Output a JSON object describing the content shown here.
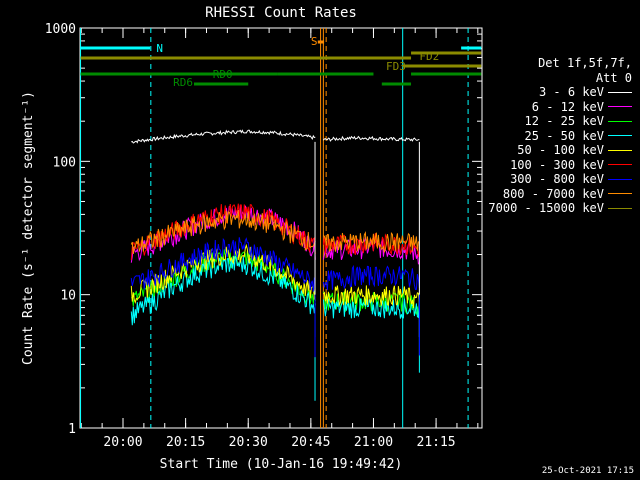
{
  "chart_data": {
    "type": "line",
    "title": "RHESSI Count Rates",
    "xlabel": "Start Time (10-Jan-16 19:49:42)",
    "ylabel": "Count Rate (s⁻¹ detector segment⁻¹)",
    "yscale": "log",
    "ylim": [
      1,
      1000
    ],
    "yticks": [
      "1",
      "10",
      "100",
      "1000"
    ],
    "x_range_minutes": [
      "19:49:42",
      "21:26:00"
    ],
    "xticks": [
      "20:00",
      "20:15",
      "20:30",
      "20:45",
      "21:00",
      "21:15"
    ],
    "legend_header": [
      "Det 1f,5f,7f,",
      "Att 0"
    ],
    "series": [
      {
        "name": "3 - 6 keV",
        "color": "#ffffff",
        "first": [
          140,
          147,
          154,
          160,
          164,
          168,
          165,
          159,
          150
        ],
        "second": [
          145,
          148,
          150,
          149,
          147,
          146,
          145
        ]
      },
      {
        "name": "6 - 12 keV",
        "color": "#ff00ff",
        "first": [
          20,
          24,
          29,
          35,
          40,
          42,
          38,
          31,
          22
        ],
        "second": [
          22,
          22,
          22,
          23,
          22,
          22,
          20
        ]
      },
      {
        "name": "12 - 25 keV",
        "color": "#00ff00",
        "first": [
          9,
          11,
          14,
          17,
          19,
          19,
          16,
          12,
          9
        ],
        "second": [
          9,
          9,
          9,
          9,
          9,
          9,
          8
        ]
      },
      {
        "name": "25 - 50 keV",
        "color": "#00ffff",
        "first": [
          7,
          9,
          12,
          15,
          17,
          17,
          14,
          11,
          8
        ],
        "second": [
          8,
          8,
          8,
          8,
          8,
          8,
          8
        ]
      },
      {
        "name": "50 - 100 keV",
        "color": "#ffff00",
        "first": [
          10,
          12,
          15,
          18,
          20,
          20,
          17,
          13,
          10
        ],
        "second": [
          10,
          10,
          10,
          10,
          10,
          10,
          9
        ]
      },
      {
        "name": "100 - 300 keV",
        "color": "#ff0000",
        "first": [
          21,
          26,
          31,
          37,
          41,
          42,
          37,
          30,
          23
        ],
        "second": [
          24,
          24,
          24,
          25,
          24,
          24,
          22
        ]
      },
      {
        "name": "300 - 800 keV",
        "color": "#0000ff",
        "first": [
          12,
          14,
          17,
          20,
          23,
          23,
          19,
          15,
          12
        ],
        "second": [
          13,
          13,
          14,
          14,
          14,
          14,
          13
        ]
      },
      {
        "name": "800 - 7000 keV",
        "color": "#ff8c00",
        "first": [
          22,
          26,
          30,
          34,
          37,
          37,
          34,
          29,
          24
        ],
        "second": [
          24,
          25,
          25,
          25,
          25,
          25,
          24
        ]
      },
      {
        "name": "7000 - 15000 keV",
        "color": "#8b8b00",
        "first": [],
        "second": []
      }
    ],
    "segments": {
      "first": [
        "20:02",
        "20:46"
      ],
      "second": [
        "20:48",
        "21:11"
      ]
    },
    "annotations": [
      {
        "label": "N",
        "color": "#00ffff"
      },
      {
        "label": "S",
        "color": "#ff8c00"
      },
      {
        "label": "FD2",
        "color": "#8b8b00"
      },
      {
        "label": "FD3",
        "color": "#8b8b00"
      },
      {
        "label": "RD0",
        "color": "#008b00"
      },
      {
        "label": "RD6",
        "color": "#008b00"
      }
    ]
  },
  "footer": "25-Oct-2021 17:15"
}
